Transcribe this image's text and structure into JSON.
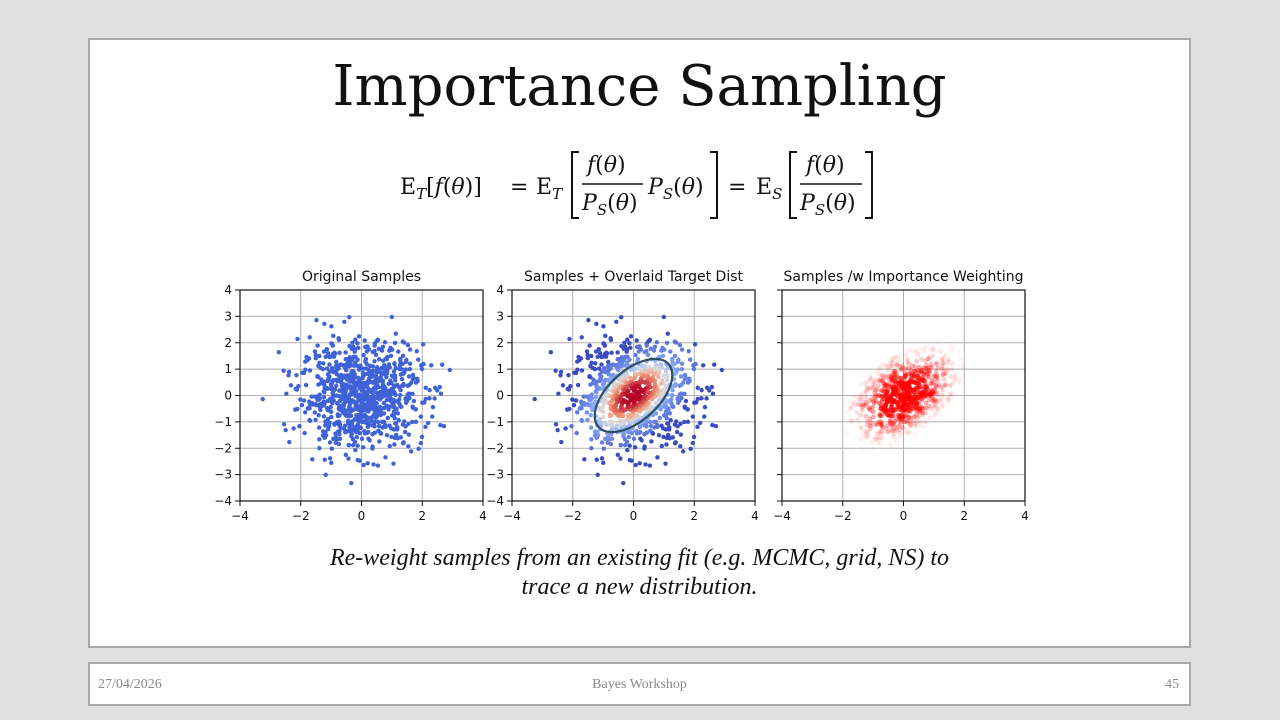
{
  "slide": {
    "title": "Importance Sampling",
    "caption_line1": "Re-weight samples from an existing fit (e.g. MCMC, grid, NS) to",
    "caption_line2": "trace a new distribution."
  },
  "equation": {
    "text": "E_T[f(θ)] = E_T[ f(θ) / P_S(θ) · P_S(θ) ] = E_S[ f(θ) / P_S(θ) ]"
  },
  "footer": {
    "date": "27/04/2026",
    "event": "Bayes Workshop",
    "page": "45"
  },
  "chart_data": [
    {
      "type": "scatter",
      "title": "Original Samples",
      "xlim": [
        -4,
        4
      ],
      "ylim": [
        -4,
        4
      ],
      "xticks": [
        "−4",
        "−2",
        "0",
        "2",
        "4"
      ],
      "yticks": [
        "4",
        "3",
        "2",
        "1",
        "0",
        "−1",
        "−2",
        "−3",
        "−4"
      ],
      "grid": true,
      "series": [
        {
          "distribution": "standard normal samples",
          "mean": [
            0,
            0
          ],
          "std": [
            1,
            1
          ],
          "color": "#3f62d6"
        }
      ]
    },
    {
      "type": "scatter",
      "title": "Samples + Overlaid Target Dist",
      "xlim": [
        -4,
        4
      ],
      "ylim": [
        -4,
        4
      ],
      "xticks": [
        "−4",
        "−2",
        "0",
        "2",
        "4"
      ],
      "yticks": [
        "4",
        "3",
        "2",
        "1",
        "0",
        "−1",
        "−2",
        "−3",
        "−4"
      ],
      "grid": true,
      "series": [
        {
          "distribution": "samples colored by target density",
          "mean": [
            0,
            0
          ],
          "std": [
            1,
            1
          ],
          "colormap": "coolwarm"
        },
        {
          "distribution": "target contour ellipse",
          "mean": [
            0,
            0
          ],
          "angle_deg": 40,
          "color": "#2f4f5f"
        }
      ]
    },
    {
      "type": "scatter",
      "title": "Samples /w Importance Weighting",
      "xlim": [
        -4,
        4
      ],
      "ylim": [
        -4,
        4
      ],
      "xticks": [
        "−4",
        "−2",
        "0",
        "2",
        "4"
      ],
      "yticks": [],
      "grid": true,
      "series": [
        {
          "distribution": "samples with alpha ∝ importance weight",
          "mean": [
            0,
            0
          ],
          "color": "#ff0000"
        }
      ]
    }
  ]
}
